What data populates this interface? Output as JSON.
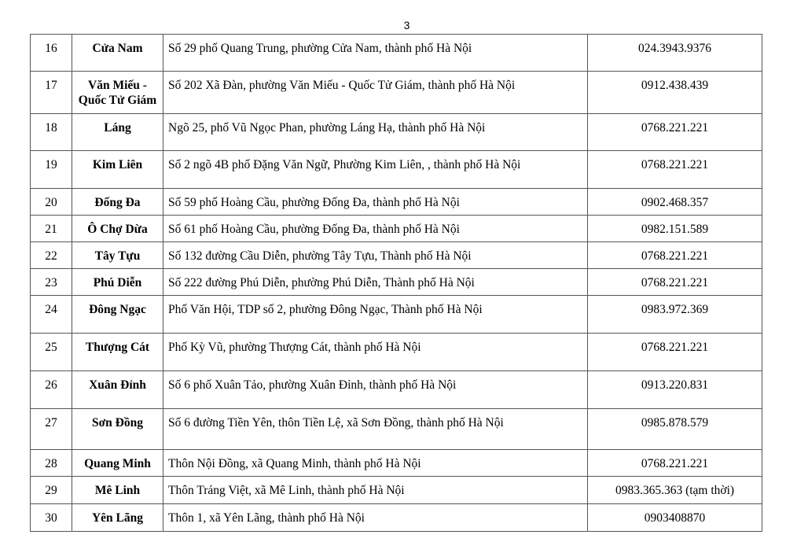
{
  "page_number": "3",
  "rows": [
    {
      "stt": "16",
      "name": "Cửa Nam",
      "address": "Số 29 phố Quang Trung, phường Cửa Nam, thành phố Hà Nội",
      "phone": "024.3943.9376"
    },
    {
      "stt": "17",
      "name": "Văn Miếu - Quốc Tử Giám",
      "address": "Số 202 Xã Đàn, phường Văn Miếu - Quốc Tử Giám, thành phố Hà Nội",
      "phone": "0912.438.439"
    },
    {
      "stt": "18",
      "name": "Láng",
      "address": "Ngõ 25, phố Vũ Ngọc Phan, phường Láng Hạ, thành phố Hà Nội",
      "phone": "0768.221.221"
    },
    {
      "stt": "19",
      "name": "Kim Liên",
      "address": "Số 2 ngõ 4B phố Đặng Văn Ngữ, Phường Kim Liên, , thành phố Hà Nội",
      "phone": "0768.221.221"
    },
    {
      "stt": "20",
      "name": "Đống Đa",
      "address": "Số 59 phố Hoàng Cầu, phường Đống Đa, thành phố Hà Nội",
      "phone": "0902.468.357"
    },
    {
      "stt": "21",
      "name": "Ô Chợ Dừa",
      "address": "Số 61 phố Hoàng Cầu, phường Đống Đa, thành phố Hà Nội",
      "phone": "0982.151.589"
    },
    {
      "stt": "22",
      "name": "Tây Tựu",
      "address": "Số 132 đường Cầu Diễn, phường Tây Tựu, Thành phố Hà Nội",
      "phone": "0768.221.221"
    },
    {
      "stt": "23",
      "name": "Phú Diễn",
      "address": "Số 222 đường Phú Diễn, phường Phú Diễn, Thành phố Hà Nội",
      "phone": "0768.221.221"
    },
    {
      "stt": "24",
      "name": "Đông Ngạc",
      "address": "Phố Văn Hội, TDP số 2, phường Đông Ngạc, Thành phố Hà Nội",
      "phone": "0983.972.369"
    },
    {
      "stt": "25",
      "name": "Thượng Cát",
      "address": "Phố Kỳ Vũ, phường Thượng Cát, thành phố Hà Nội",
      "phone": "0768.221.221"
    },
    {
      "stt": "26",
      "name": "Xuân Đỉnh",
      "address": "Số 6 phố Xuân Tảo, phường Xuân Đỉnh, thành phố Hà Nội",
      "phone": "0913.220.831"
    },
    {
      "stt": "27",
      "name": "Sơn Đồng",
      "address": "Số 6 đường Tiền Yên, thôn Tiền Lệ, xã Sơn Đồng, thành phố Hà Nội",
      "phone": "0985.878.579"
    },
    {
      "stt": "28",
      "name": "Quang Minh",
      "address": "Thôn Nội Đồng, xã Quang Minh, thành phố Hà Nội",
      "phone": "0768.221.221"
    },
    {
      "stt": "29",
      "name": "Mê Linh",
      "address": "Thôn Tráng Việt, xã Mê Linh, thành phố Hà Nội",
      "phone": "0983.365.363 (tạm thời)"
    },
    {
      "stt": "30",
      "name": "Yên Lãng",
      "address": "Thôn 1, xã Yên Lãng, thành phố Hà Nội",
      "phone": "0903408870"
    }
  ]
}
